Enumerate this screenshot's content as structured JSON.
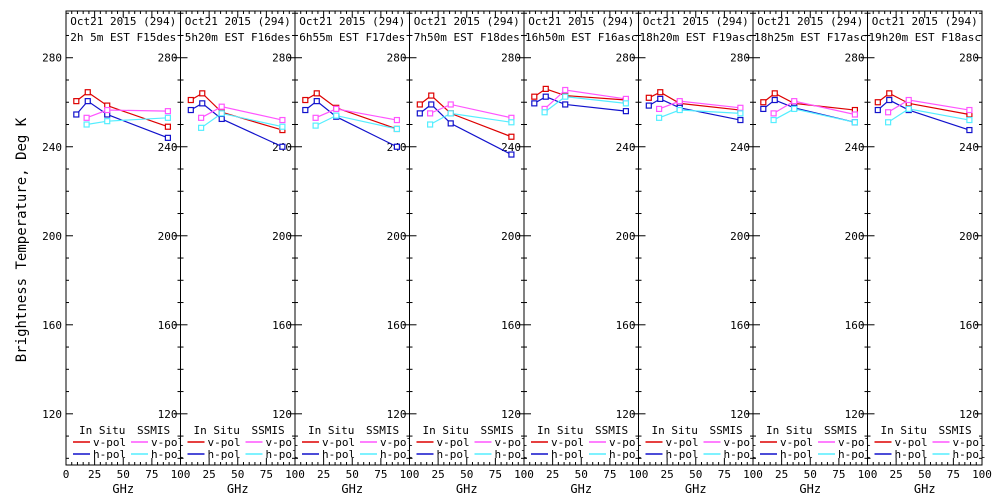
{
  "figure": {
    "background": "#ffffff",
    "axis_color": "#000000"
  },
  "chart_data": {
    "type": "line",
    "title": "",
    "xlabel": "GHz",
    "ylabel": "Brightness Temperature, Deg K",
    "xlim": [
      0,
      100
    ],
    "ylim": [
      97,
      301
    ],
    "xticks": [
      0,
      25,
      50,
      75,
      100
    ],
    "xtick_labels": [
      "0",
      "25",
      "50",
      "75",
      "100"
    ],
    "yticks": [
      120,
      160,
      200,
      240,
      280
    ],
    "ytick_labels": [
      "120",
      "160",
      "200",
      "240",
      "280"
    ],
    "x_minor_step": 5,
    "y_minor_step": 10,
    "grid": false,
    "marker": "open-square",
    "legend": {
      "position": "bottom-inside-each-panel",
      "groups": [
        {
          "name": "In Situ",
          "entries": [
            {
              "label": "v-pol",
              "color": "#dd0000"
            },
            {
              "label": "h-pol",
              "color": "#1111cc"
            }
          ]
        },
        {
          "name": "SSMIS",
          "entries": [
            {
              "label": "v-pol",
              "color": "#ff55ff"
            },
            {
              "label": "h-pol",
              "color": "#55eeff"
            }
          ]
        }
      ]
    },
    "colors": {
      "in_situ_v": "#dd0000",
      "in_situ_h": "#1111cc",
      "ssmis_v": "#ff55ff",
      "ssmis_h": "#55eeff"
    },
    "panels": [
      {
        "title_line1": "Oct21 2015 (294)",
        "title_line2": "2h 5m EST F15des",
        "series": [
          {
            "name": "in-situ-v-pol",
            "color": "#dd0000",
            "x": [
              9,
              19,
              36,
              89
            ],
            "y": [
              260.5,
              264.5,
              258.5,
              249
            ]
          },
          {
            "name": "in-situ-h-pol",
            "color": "#1111cc",
            "x": [
              9,
              19,
              36,
              89
            ],
            "y": [
              254.5,
              260.5,
              254.5,
              244
            ]
          },
          {
            "name": "ssmis-v-pol",
            "color": "#ff55ff",
            "x": [
              18,
              36,
              89
            ],
            "y": [
              253,
              256.5,
              256
            ]
          },
          {
            "name": "ssmis-h-pol",
            "color": "#55eeff",
            "x": [
              18,
              36,
              89
            ],
            "y": [
              250,
              251.5,
              253
            ]
          }
        ]
      },
      {
        "title_line1": "Oct21 2015 (294)",
        "title_line2": "5h20m EST F16des",
        "series": [
          {
            "name": "in-situ-v-pol",
            "color": "#dd0000",
            "x": [
              9,
              19,
              36,
              89
            ],
            "y": [
              261,
              264,
              255.5,
              247.5
            ]
          },
          {
            "name": "in-situ-h-pol",
            "color": "#1111cc",
            "x": [
              9,
              19,
              36,
              89
            ],
            "y": [
              256.5,
              259.5,
              252.5,
              240
            ]
          },
          {
            "name": "ssmis-v-pol",
            "color": "#ff55ff",
            "x": [
              18,
              36,
              89
            ],
            "y": [
              253,
              258,
              252
            ]
          },
          {
            "name": "ssmis-h-pol",
            "color": "#55eeff",
            "x": [
              18,
              36,
              89
            ],
            "y": [
              248.5,
              255,
              249
            ]
          }
        ]
      },
      {
        "title_line1": "Oct21 2015 (294)",
        "title_line2": "6h55m EST F17des",
        "series": [
          {
            "name": "in-situ-v-pol",
            "color": "#dd0000",
            "x": [
              9,
              19,
              36,
              89
            ],
            "y": [
              261,
              264,
              257.5,
              248
            ]
          },
          {
            "name": "in-situ-h-pol",
            "color": "#1111cc",
            "x": [
              9,
              19,
              36,
              89
            ],
            "y": [
              256.5,
              260.5,
              253.5,
              240
            ]
          },
          {
            "name": "ssmis-v-pol",
            "color": "#ff55ff",
            "x": [
              18,
              36,
              89
            ],
            "y": [
              253,
              257,
              252
            ]
          },
          {
            "name": "ssmis-h-pol",
            "color": "#55eeff",
            "x": [
              18,
              36,
              89
            ],
            "y": [
              249.5,
              254,
              248
            ]
          }
        ]
      },
      {
        "title_line1": "Oct21 2015 (294)",
        "title_line2": "7h50m EST F18des",
        "series": [
          {
            "name": "in-situ-v-pol",
            "color": "#dd0000",
            "x": [
              9,
              19,
              36,
              89
            ],
            "y": [
              259,
              263,
              255,
              244.5
            ]
          },
          {
            "name": "in-situ-h-pol",
            "color": "#1111cc",
            "x": [
              9,
              19,
              36,
              89
            ],
            "y": [
              255,
              259,
              250.5,
              236.5
            ]
          },
          {
            "name": "ssmis-v-pol",
            "color": "#ff55ff",
            "x": [
              18,
              36,
              89
            ],
            "y": [
              255,
              259,
              253
            ]
          },
          {
            "name": "ssmis-h-pol",
            "color": "#55eeff",
            "x": [
              18,
              36,
              89
            ],
            "y": [
              250,
              255,
              251
            ]
          }
        ]
      },
      {
        "title_line1": "Oct21 2015 (294)",
        "title_line2": "16h50m EST F16asc",
        "series": [
          {
            "name": "in-situ-v-pol",
            "color": "#dd0000",
            "x": [
              9,
              19,
              36,
              89
            ],
            "y": [
              262.5,
              266,
              263,
              261
            ]
          },
          {
            "name": "in-situ-h-pol",
            "color": "#1111cc",
            "x": [
              9,
              19,
              36,
              89
            ],
            "y": [
              259.5,
              262.5,
              259,
              256
            ]
          },
          {
            "name": "ssmis-v-pol",
            "color": "#ff55ff",
            "x": [
              18,
              36,
              89
            ],
            "y": [
              257,
              265.5,
              261.5
            ]
          },
          {
            "name": "ssmis-h-pol",
            "color": "#55eeff",
            "x": [
              18,
              36,
              89
            ],
            "y": [
              255.5,
              262.5,
              259.5
            ]
          }
        ]
      },
      {
        "title_line1": "Oct21 2015 (294)",
        "title_line2": "18h20m EST F19asc",
        "series": [
          {
            "name": "in-situ-v-pol",
            "color": "#dd0000",
            "x": [
              9,
              19,
              36,
              89
            ],
            "y": [
              262,
              264.5,
              259.5,
              256.5
            ]
          },
          {
            "name": "in-situ-h-pol",
            "color": "#1111cc",
            "x": [
              9,
              19,
              36,
              89
            ],
            "y": [
              258.5,
              261.5,
              257.5,
              252
            ]
          },
          {
            "name": "ssmis-v-pol",
            "color": "#ff55ff",
            "x": [
              18,
              36,
              89
            ],
            "y": [
              257,
              260.5,
              257.5
            ]
          },
          {
            "name": "ssmis-h-pol",
            "color": "#55eeff",
            "x": [
              18,
              36,
              89
            ],
            "y": [
              253,
              256.5,
              255
            ]
          }
        ]
      },
      {
        "title_line1": "Oct21 2015 (294)",
        "title_line2": "18h25m EST F17asc",
        "series": [
          {
            "name": "in-situ-v-pol",
            "color": "#dd0000",
            "x": [
              9,
              19,
              36,
              89
            ],
            "y": [
              260,
              264,
              259.5,
              256.5
            ]
          },
          {
            "name": "in-situ-h-pol",
            "color": "#1111cc",
            "x": [
              9,
              19,
              36,
              89
            ],
            "y": [
              257,
              261,
              257.5,
              251
            ]
          },
          {
            "name": "ssmis-v-pol",
            "color": "#ff55ff",
            "x": [
              18,
              36,
              89
            ],
            "y": [
              255,
              260.5,
              254.5
            ]
          },
          {
            "name": "ssmis-h-pol",
            "color": "#55eeff",
            "x": [
              18,
              36,
              89
            ],
            "y": [
              252,
              257,
              251
            ]
          }
        ]
      },
      {
        "title_line1": "Oct21 2015 (294)",
        "title_line2": "19h20m EST F18asc",
        "series": [
          {
            "name": "in-situ-v-pol",
            "color": "#dd0000",
            "x": [
              9,
              19,
              36,
              89
            ],
            "y": [
              260,
              264,
              259.5,
              254.5
            ]
          },
          {
            "name": "in-situ-h-pol",
            "color": "#1111cc",
            "x": [
              9,
              19,
              36,
              89
            ],
            "y": [
              256.5,
              261,
              256.5,
              247.5
            ]
          },
          {
            "name": "ssmis-v-pol",
            "color": "#ff55ff",
            "x": [
              18,
              36,
              89
            ],
            "y": [
              255.5,
              261,
              256.5
            ]
          },
          {
            "name": "ssmis-h-pol",
            "color": "#55eeff",
            "x": [
              18,
              36,
              89
            ],
            "y": [
              251,
              257,
              252
            ]
          }
        ]
      }
    ]
  }
}
